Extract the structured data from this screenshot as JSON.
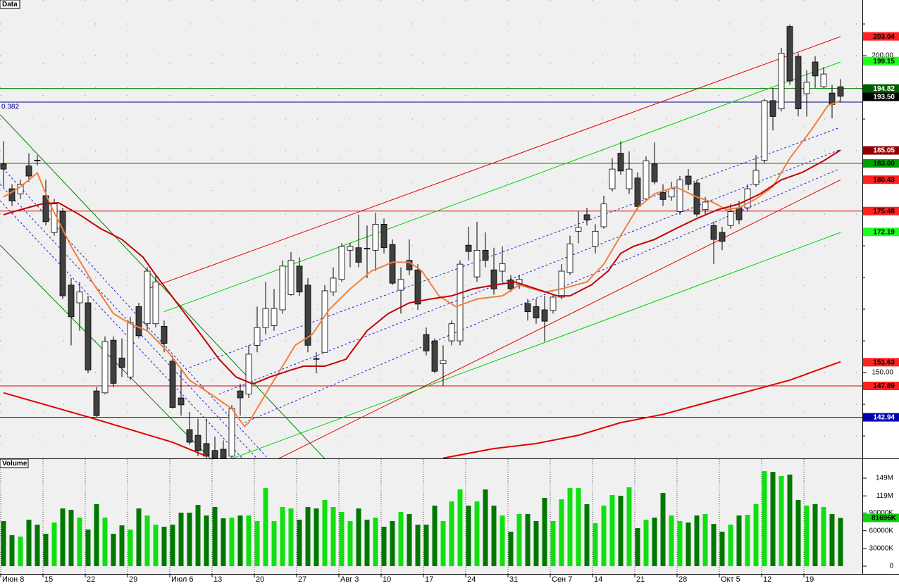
{
  "chart_data": [
    {
      "type": "candlestick",
      "title": "Data",
      "categories": [
        "Июн 8",
        null,
        null,
        null,
        null,
        "15",
        null,
        null,
        null,
        null,
        "22",
        null,
        null,
        null,
        null,
        "29",
        null,
        null,
        null,
        null,
        "Июл 6",
        null,
        null,
        null,
        null,
        "13",
        null,
        null,
        null,
        null,
        "20",
        null,
        null,
        null,
        null,
        "27",
        null,
        null,
        null,
        null,
        "Авг 3",
        null,
        null,
        null,
        null,
        "10",
        null,
        null,
        null,
        null,
        "17",
        null,
        null,
        null,
        null,
        "24",
        null,
        null,
        null,
        null,
        "31",
        null,
        null,
        null,
        null,
        "Сен 7",
        null,
        null,
        null,
        null,
        "14",
        null,
        null,
        null,
        null,
        "21",
        null,
        null,
        null,
        null,
        "28",
        null,
        null,
        null,
        null,
        "Окт 5",
        null,
        null,
        null,
        null,
        "12",
        null,
        null,
        null,
        null,
        "19",
        null,
        null,
        null,
        null
      ],
      "open": [
        182.9,
        179.0,
        178.2,
        182.6,
        183.5,
        177.9,
        172.1,
        175.4,
        163.8,
        161.0,
        161.0,
        147.1,
        146.8,
        155.1,
        152.3,
        149.3,
        160.4,
        157.7,
        157.7,
        157.3,
        151.8,
        146.0,
        141.0,
        140.1,
        138.8,
        137.7,
        137.9,
        136.8,
        147.1,
        146.6,
        154.3,
        157.1,
        157.4,
        159.9,
        162.3,
        166.8,
        163.8,
        152.2,
        153.2,
        162.7,
        164.7,
        169.3,
        169.7,
        169.6,
        169.3,
        173.4,
        170.2,
        163.0,
        167.7,
        166.2,
        156.0,
        155.0,
        151.4,
        155.0,
        155.0,
        170.1,
        165.1,
        169.3,
        166.2,
        166.0,
        164.6,
        163.9,
        160.9,
        160.4,
        159.9,
        159.8,
        161.9,
        165.8,
        172.3,
        174.9,
        169.9,
        173.0,
        179.0,
        184.6,
        179.0,
        180.7,
        177.4,
        182.9,
        178.4,
        177.7,
        175.4,
        181.0,
        179.9,
        175.7,
        173.2,
        172.1,
        173.2,
        176.0,
        176.0,
        179.7,
        183.5,
        192.9,
        191.6,
        204.6,
        199.9,
        194.0,
        199.0,
        195.1,
        194.1,
        195.1
      ],
      "high": [
        186.5,
        179.7,
        180.4,
        184.6,
        184.3,
        180.4,
        177.4,
        176.0,
        164.9,
        164.3,
        162.1,
        147.7,
        155.7,
        155.7,
        155.4,
        158.8,
        161.0,
        166.6,
        165.4,
        158.2,
        152.7,
        150.4,
        143.8,
        142.7,
        142.7,
        139.9,
        139.3,
        144.9,
        148.2,
        154.3,
        160.4,
        164.3,
        163.2,
        167.7,
        169.0,
        168.2,
        164.9,
        153.2,
        163.8,
        166.6,
        170.4,
        170.4,
        174.9,
        173.2,
        175.2,
        174.3,
        171.0,
        166.6,
        171.0,
        167.1,
        157.1,
        155.4,
        154.3,
        158.2,
        167.7,
        173.0,
        173.8,
        172.1,
        169.7,
        169.9,
        165.4,
        165.4,
        161.6,
        161.6,
        162.1,
        162.3,
        167.1,
        171.6,
        175.4,
        176.0,
        173.4,
        177.9,
        183.8,
        186.5,
        184.9,
        181.6,
        184.1,
        186.3,
        179.7,
        180.1,
        181.0,
        182.1,
        180.4,
        177.7,
        173.8,
        173.0,
        176.6,
        177.1,
        179.7,
        184.3,
        193.2,
        194.9,
        201.2,
        204.9,
        200.4,
        197.7,
        199.9,
        198.2,
        195.4,
        196.3
      ],
      "low": [
        179.3,
        176.3,
        177.4,
        180.1,
        182.7,
        173.2,
        171.6,
        161.6,
        154.3,
        156.6,
        149.9,
        143.0,
        146.6,
        147.7,
        149.3,
        148.8,
        155.4,
        156.6,
        157.1,
        153.2,
        144.3,
        143.2,
        138.6,
        136.8,
        136.5,
        136.5,
        136.5,
        136.5,
        143.2,
        146.0,
        153.2,
        156.0,
        156.6,
        159.3,
        162.1,
        162.1,
        153.2,
        149.9,
        153.2,
        162.1,
        164.3,
        166.6,
        166.6,
        164.9,
        166.0,
        168.8,
        163.8,
        159.3,
        165.4,
        159.9,
        152.7,
        149.9,
        147.9,
        154.3,
        154.3,
        167.7,
        164.3,
        166.6,
        162.3,
        164.3,
        162.7,
        163.2,
        158.2,
        157.7,
        154.9,
        159.3,
        161.6,
        165.4,
        170.4,
        173.2,
        168.8,
        172.7,
        178.6,
        181.2,
        178.2,
        175.7,
        177.1,
        179.7,
        176.3,
        177.1,
        174.9,
        178.8,
        174.6,
        174.9,
        167.1,
        169.3,
        172.7,
        173.4,
        175.4,
        179.3,
        183.0,
        188.2,
        191.2,
        195.4,
        190.4,
        190.4,
        194.9,
        194.9,
        190.1,
        192.7
      ],
      "close": [
        182.1,
        177.1,
        179.7,
        181.0,
        183.4,
        173.8,
        176.6,
        162.1,
        158.8,
        162.7,
        150.4,
        143.2,
        154.9,
        148.3,
        150.8,
        157.9,
        155.8,
        166.0,
        164.3,
        154.6,
        144.5,
        144.9,
        139.0,
        137.7,
        136.8,
        136.5,
        136.5,
        144.3,
        146.0,
        152.9,
        157.1,
        160.1,
        160.1,
        166.8,
        167.7,
        162.7,
        154.3,
        152.1,
        162.9,
        164.9,
        169.9,
        169.9,
        167.4,
        169.5,
        173.4,
        169.7,
        164.1,
        164.7,
        166.2,
        160.8,
        153.4,
        150.2,
        151.9,
        157.7,
        167.1,
        169.1,
        169.3,
        167.7,
        163.2,
        167.2,
        163.2,
        164.7,
        159.6,
        158.6,
        158.1,
        161.9,
        166.0,
        170.3,
        172.9,
        174.1,
        172.3,
        176.6,
        182.1,
        181.8,
        182.1,
        176.2,
        183.4,
        180.1,
        177.3,
        179.0,
        180.4,
        179.7,
        175.0,
        176.9,
        171.0,
        170.7,
        175.4,
        174.1,
        179.0,
        181.9,
        192.9,
        190.4,
        200.4,
        196.0,
        191.6,
        195.8,
        196.8,
        197.1,
        192.3,
        193.6
      ],
      "up_color": "#ffffff",
      "down_color": "#404040",
      "ylim": [
        136.45,
        208.78
      ],
      "yticks": [
        {
          "value": 150,
          "label": "150.00"
        },
        {
          "value": 200,
          "label": "200.00"
        }
      ],
      "minor_yticks": [
        140,
        145,
        150,
        155,
        160,
        165,
        170,
        175,
        180,
        185,
        190,
        195,
        200,
        205
      ],
      "lines": [
        {
          "color": "#f08040",
          "x": [
            0,
            2,
            4,
            5.5,
            8,
            10.5,
            13,
            15,
            17,
            19.5,
            22,
            24.5,
            27,
            28.5,
            29,
            31,
            33,
            34.5,
            36.5,
            38.5,
            41,
            43.5,
            46,
            48,
            49.5,
            51.5,
            53.5,
            56,
            59,
            61,
            64,
            66,
            69,
            71,
            73,
            75,
            77,
            79.5,
            82,
            84,
            85.5,
            87,
            89,
            91,
            93,
            95.5,
            97.5,
            99
          ],
          "values": [
            177.7,
            179.3,
            181.5,
            176.6,
            169.9,
            164.3,
            159.3,
            157.7,
            156.6,
            153.2,
            148.8,
            146.6,
            144.3,
            141.5,
            142.1,
            146.6,
            151.0,
            154.3,
            156.0,
            159.9,
            163.2,
            166.0,
            167.4,
            167.4,
            166.0,
            162.1,
            160.4,
            161.6,
            162.1,
            163.8,
            162.7,
            163.2,
            164.3,
            167.1,
            171.6,
            176.0,
            178.2,
            179.3,
            177.7,
            176.8,
            175.7,
            176.0,
            177.4,
            179.3,
            183.8,
            188.2,
            192.1,
            192.9
          ]
        },
        {
          "color": "#c00000",
          "x": [
            0,
            2,
            4.5,
            6.5,
            9,
            11.5,
            14,
            16.5,
            18,
            20.5,
            23,
            25.5,
            27.5,
            29.5,
            31.5,
            34,
            35.5,
            38,
            40.5,
            43,
            45.5,
            48,
            50.5,
            53,
            55.5,
            58,
            60.5,
            63,
            65.5,
            67,
            69.5,
            71.5,
            73,
            74.5,
            77,
            79.5,
            82,
            84.5,
            87,
            89.5,
            92,
            94.5,
            97,
            99
          ],
          "values": [
            174.9,
            175.7,
            176.6,
            176.8,
            174.9,
            172.7,
            171.0,
            168.2,
            165.4,
            161.0,
            156.6,
            152.1,
            149.3,
            148.2,
            149.3,
            150.4,
            151.0,
            151.0,
            152.1,
            156.6,
            159.3,
            161.0,
            161.6,
            162.1,
            163.2,
            163.8,
            164.3,
            163.2,
            162.1,
            162.1,
            163.8,
            166.0,
            168.8,
            169.9,
            171.0,
            172.7,
            174.3,
            175.7,
            176.6,
            178.2,
            180.4,
            181.6,
            183.4,
            185.1
          ]
        },
        {
          "color": "#e00000",
          "x": [
            0,
            5,
            10,
            15,
            20,
            24,
            40,
            52,
            58,
            63,
            68,
            73,
            78,
            83,
            88,
            93,
            99
          ],
          "values": [
            146.8,
            144.9,
            143.0,
            141.0,
            139.0,
            136.8,
            null,
            136.5,
            138.0,
            138.8,
            140.1,
            142.1,
            143.4,
            145.2,
            147.0,
            148.8,
            151.7
          ]
        }
      ],
      "trendlines": [
        {
          "color": "#e00000",
          "dashed": false,
          "x": [
            17,
            99
          ],
          "values": [
            163.2,
            203.0
          ]
        },
        {
          "color": "#e00000",
          "dashed": false,
          "x": [
            32.5,
            99
          ],
          "values": [
            136.4,
            180.4
          ]
        },
        {
          "color": "#00d000",
          "dashed": false,
          "x": [
            19,
            99
          ],
          "values": [
            159.6,
            199.0
          ]
        },
        {
          "color": "#00d000",
          "dashed": false,
          "x": [
            27,
            99
          ],
          "values": [
            136.4,
            172.1
          ]
        },
        {
          "color": "#2020d0",
          "dashed": true,
          "x": [
            22,
            98.8
          ],
          "values": [
            150.8,
            188.6
          ]
        },
        {
          "color": "#2020d0",
          "dashed": true,
          "x": [
            25.5,
            98.8
          ],
          "values": [
            146.6,
            185.1
          ]
        },
        {
          "color": "#2020d0",
          "dashed": true,
          "x": [
            28.5,
            98.8
          ],
          "values": [
            142.1,
            182.1
          ]
        },
        {
          "color": "#008000",
          "dashed": false,
          "x": [
            -0.4,
            38
          ],
          "values": [
            190.7,
            136.4
          ]
        },
        {
          "color": "#008000",
          "dashed": false,
          "x": [
            -0.4,
            24.5
          ],
          "values": [
            170.1,
            136.4
          ]
        },
        {
          "color": "#2020d0",
          "dashed": true,
          "x": [
            -0.4,
            31.3
          ],
          "values": [
            182.7,
            136.4
          ]
        },
        {
          "color": "#2020d0",
          "dashed": true,
          "x": [
            -0.4,
            30
          ],
          "values": [
            179.7,
            136.4
          ]
        },
        {
          "color": "#2020d0",
          "dashed": true,
          "x": [
            -0.4,
            28.3
          ],
          "values": [
            177.1,
            136.4
          ]
        }
      ],
      "hlines": [
        {
          "value": 194.82,
          "color": "#008000"
        },
        {
          "value": 192.67,
          "color": "#000090",
          "label": "0.382"
        },
        {
          "value": 183.0,
          "color": "#008000"
        },
        {
          "value": 175.48,
          "color": "#e00000"
        },
        {
          "value": 147.89,
          "color": "#e00000"
        },
        {
          "value": 142.94,
          "color": "#0000b0"
        }
      ],
      "price_markers": [
        {
          "value": 203.04,
          "label": "203.04",
          "bg": "#ff2020",
          "fg": "#000000"
        },
        {
          "value": 199.15,
          "label": "199.15",
          "bg": "#20ff20",
          "fg": "#000000"
        },
        {
          "value": 194.82,
          "label": "194.82",
          "bg": "#006000",
          "fg": "#ffffff"
        },
        {
          "value": 193.5,
          "label": "193.50",
          "bg": "#000000",
          "fg": "#ffffff"
        },
        {
          "value": 185.05,
          "label": "185.05",
          "bg": "#900000",
          "fg": "#ffffff"
        },
        {
          "value": 183.0,
          "label": "183.00",
          "bg": "#00a000",
          "fg": "#000000"
        },
        {
          "value": 180.43,
          "label": "180.43",
          "bg": "#ff2020",
          "fg": "#000000"
        },
        {
          "value": 175.48,
          "label": "175.48",
          "bg": "#ff2020",
          "fg": "#000000"
        },
        {
          "value": 172.19,
          "label": "172.19",
          "bg": "#20ff20",
          "fg": "#000000"
        },
        {
          "value": 151.63,
          "label": "151.63",
          "bg": "#ff2020",
          "fg": "#000000"
        },
        {
          "value": 147.89,
          "label": "147.89",
          "bg": "#ff2020",
          "fg": "#000000"
        },
        {
          "value": 142.94,
          "label": "142.94",
          "bg": "#0000b0",
          "fg": "#ffffff"
        }
      ]
    },
    {
      "type": "bar",
      "title": "Volume",
      "values": [
        76.3,
        52.4,
        50.1,
        78.7,
        70.3,
        54.8,
        73.9,
        97.7,
        95.4,
        82.2,
        62.0,
        104.9,
        82.2,
        54.8,
        69.1,
        62.0,
        97.7,
        85.8,
        70.3,
        66.8,
        70.3,
        90.6,
        90.6,
        103.7,
        85.8,
        100.1,
        81.1,
        82.2,
        85.8,
        85.8,
        76.3,
        132.3,
        76.3,
        100.1,
        97.7,
        78.7,
        100.1,
        97.7,
        112.0,
        100.1,
        91.8,
        76.3,
        97.7,
        78.7,
        82.2,
        66.8,
        76.3,
        91.8,
        88.2,
        70.3,
        70.3,
        102.5,
        76.3,
        109.7,
        129.9,
        102.5,
        109.7,
        129.9,
        102.5,
        85.8,
        58.4,
        88.2,
        88.2,
        76.3,
        115.6,
        76.3,
        113.2,
        132.3,
        132.3,
        104.9,
        72.7,
        102.5,
        120.4,
        119.2,
        133.5,
        64.4,
        78.7,
        82.2,
        124.0,
        85.8,
        76.3,
        73.9,
        85.8,
        88.2,
        71.5,
        58.4,
        70.3,
        85.8,
        87.0,
        104.9,
        160.9,
        159.7,
        152.6,
        155.0,
        112.0,
        102.5,
        104.9,
        100.1,
        88.2,
        81.696
      ],
      "up_color": "#10e010",
      "down_color": "#007800",
      "ylim": [
        -13.1,
        181.2
      ],
      "yticks": [
        {
          "value": 149,
          "label": "149M"
        },
        {
          "value": 119,
          "label": "119M"
        },
        {
          "value": 90,
          "label": "90000K"
        },
        {
          "value": 60,
          "label": "60000K"
        },
        {
          "value": 30,
          "label": "30000K"
        },
        0
      ],
      "markers": [
        {
          "value": 81.696,
          "label": "81696K",
          "bg": "#10d010",
          "fg": "#000000"
        }
      ]
    }
  ]
}
